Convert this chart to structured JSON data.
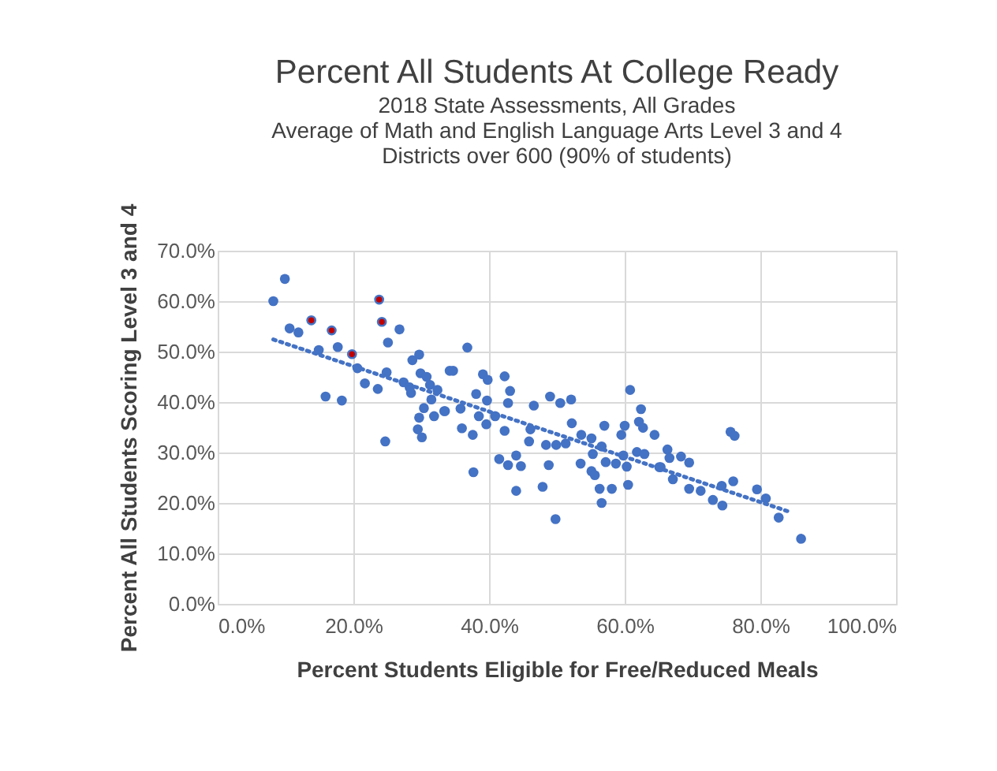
{
  "chart_data": {
    "type": "scatter",
    "title": "Percent All Students At College Ready",
    "subtitle": "2018 State Assessments, All Grades\nAverage of Math and English Language Arts Level 3 and 4\nDistricts over 600 (90% of students)",
    "xlabel": "Percent Students Eligible for Free/Reduced Meals",
    "ylabel": "Percent All Students Scoring Level 3 and 4",
    "xlim": [
      0,
      100
    ],
    "ylim": [
      0,
      70
    ],
    "xticks": [
      {
        "value": 0,
        "label": "0.0%"
      },
      {
        "value": 20,
        "label": "20.0%"
      },
      {
        "value": 40,
        "label": "40.0%"
      },
      {
        "value": 60,
        "label": "60.0%"
      },
      {
        "value": 80,
        "label": "80.0%"
      },
      {
        "value": 100,
        "label": "100.0%"
      }
    ],
    "yticks": [
      {
        "value": 0,
        "label": "0.0%"
      },
      {
        "value": 10,
        "label": "10.0%"
      },
      {
        "value": 20,
        "label": "20.0%"
      },
      {
        "value": 30,
        "label": "30.0%"
      },
      {
        "value": 40,
        "label": "40.0%"
      },
      {
        "value": 50,
        "label": "50.0%"
      },
      {
        "value": 60,
        "label": "60.0%"
      },
      {
        "value": 70,
        "label": "70.0%"
      }
    ],
    "grid": true,
    "series": [
      {
        "color": "#4472c4",
        "marker": "circle",
        "x": [
          9.9,
          8.2,
          10.6,
          11.9,
          13.8,
          16.8,
          14.9,
          17.7,
          19.8,
          20.6,
          15.9,
          18.3,
          23.8,
          24.2,
          26.8,
          25.1,
          21.7,
          23.6,
          24.9,
          24.7,
          27.4,
          28.3,
          28.5,
          28.7,
          29.7,
          29.9,
          30.8,
          31.3,
          34.2,
          31.5,
          30.4,
          29.7,
          29.5,
          30.1,
          31.9,
          33.4,
          36.8,
          34.7,
          32.4,
          33.5,
          35.8,
          36.0,
          38.1,
          37.7,
          39.1,
          39.8,
          39.7,
          38.5,
          39.6,
          37.6,
          42.3,
          43.1,
          42.8,
          40.9,
          42.3,
          41.5,
          42.8,
          44.0,
          44.7,
          44.0,
          46.6,
          46.1,
          45.9,
          48.8,
          47.9,
          49.8,
          49.0,
          50.5,
          52.1,
          52.2,
          48.4,
          49.9,
          51.3,
          53.6,
          53.5,
          55.1,
          55.3,
          57.0,
          56.6,
          55.1,
          55.6,
          56.3,
          56.6,
          58.1,
          57.2,
          58.7,
          59.5,
          60.0,
          60.8,
          62.4,
          62.1,
          62.7,
          59.8,
          61.8,
          62.9,
          60.5,
          60.3,
          64.4,
          65.3,
          66.3,
          75.6,
          76.2,
          66.6,
          65.1,
          68.3,
          69.5,
          67.1,
          69.5,
          71.2,
          74.3,
          76.0,
          73.0,
          74.4,
          79.5,
          80.8,
          82.7,
          86.0
        ],
        "values": [
          64.4,
          60.0,
          54.6,
          53.8,
          56.2,
          54.2,
          50.3,
          50.9,
          49.5,
          46.7,
          41.1,
          40.3,
          60.3,
          55.9,
          54.4,
          51.8,
          43.7,
          42.6,
          45.9,
          32.2,
          43.9,
          42.9,
          41.8,
          48.3,
          49.4,
          45.7,
          45.0,
          43.4,
          46.2,
          40.5,
          38.8,
          36.9,
          34.6,
          33.0,
          37.2,
          38.2,
          50.8,
          46.2,
          42.4,
          38.2,
          38.7,
          34.8,
          41.6,
          26.1,
          45.5,
          44.4,
          40.3,
          37.2,
          35.6,
          33.5,
          45.1,
          42.2,
          39.8,
          37.2,
          34.3,
          28.7,
          27.5,
          29.4,
          27.3,
          22.4,
          39.3,
          34.6,
          32.2,
          27.5,
          23.2,
          16.8,
          41.1,
          39.8,
          40.5,
          35.8,
          31.5,
          31.5,
          31.8,
          33.5,
          27.8,
          32.8,
          29.7,
          35.3,
          31.2,
          26.3,
          25.5,
          22.8,
          20.0,
          22.8,
          28.1,
          27.8,
          33.5,
          35.3,
          42.4,
          38.6,
          36.1,
          34.9,
          29.4,
          30.1,
          29.7,
          23.6,
          27.2,
          33.5,
          27.1,
          30.6,
          34.1,
          33.3,
          28.9,
          27.1,
          29.2,
          28.0,
          24.7,
          22.8,
          22.4,
          23.4,
          24.3,
          20.6,
          19.5,
          22.7,
          20.9,
          17.1,
          12.9
        ]
      },
      {
        "color": "#c00000",
        "marker": "circle",
        "x": [
          13.8,
          16.8,
          19.8,
          23.8,
          24.2
        ],
        "values": [
          56.2,
          54.2,
          49.5,
          60.3,
          55.9
        ]
      },
      {
        "type": "line",
        "color": "#4472c4",
        "line_style": "dotted",
        "marker": "none",
        "x": [
          8.2,
          84.4
        ],
        "values": [
          52.4,
          18.2
        ]
      }
    ]
  }
}
